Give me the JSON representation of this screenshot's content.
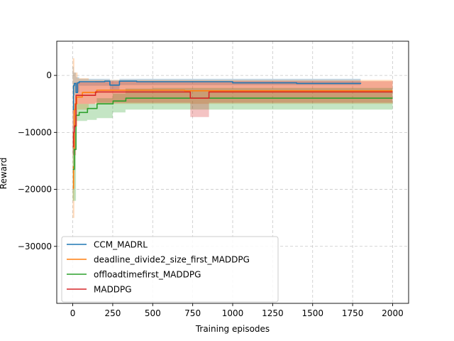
{
  "chart_data": {
    "type": "line",
    "title": "",
    "xlabel": "Training episodes",
    "ylabel": "Reward",
    "xlim": [
      -100,
      2100
    ],
    "ylim": [
      -40000,
      6000
    ],
    "xticks": [
      0,
      250,
      500,
      750,
      1000,
      1250,
      1500,
      1750,
      2000
    ],
    "xtick_labels": [
      "0",
      "250",
      "500",
      "750",
      "1000",
      "1250",
      "1500",
      "1750",
      "2000"
    ],
    "yticks": [
      -30000,
      -20000,
      -10000,
      0
    ],
    "ytick_labels": [
      "−30000",
      "−20000",
      "−10000",
      "0"
    ],
    "grid": true,
    "legend_position": "lower-left",
    "series": [
      {
        "name": "CCM_MADRL",
        "color": "#1f77b4",
        "points": [
          [
            0,
            -6000
          ],
          [
            5,
            -1800
          ],
          [
            10,
            -1400
          ],
          [
            20,
            -3000
          ],
          [
            30,
            -1300
          ],
          [
            40,
            -1100
          ],
          [
            100,
            -1100
          ],
          [
            200,
            -1000
          ],
          [
            230,
            -1000
          ],
          [
            232,
            -1700
          ],
          [
            290,
            -1700
          ],
          [
            292,
            -1000
          ],
          [
            400,
            -1100
          ],
          [
            700,
            -1100
          ],
          [
            1000,
            -1300
          ],
          [
            1200,
            -1300
          ],
          [
            1400,
            -1400
          ],
          [
            1600,
            -1400
          ],
          [
            1800,
            -1300
          ]
        ],
        "band_upper": [
          [
            0,
            1500
          ],
          [
            5,
            500
          ],
          [
            20,
            -300
          ],
          [
            40,
            -600
          ],
          [
            230,
            -600
          ],
          [
            232,
            -800
          ],
          [
            290,
            -800
          ],
          [
            292,
            -600
          ],
          [
            1800,
            -700
          ]
        ],
        "band_lower": [
          [
            0,
            -14000
          ],
          [
            5,
            -3500
          ],
          [
            20,
            -3000
          ],
          [
            40,
            -1800
          ],
          [
            230,
            -1800
          ],
          [
            232,
            -2500
          ],
          [
            290,
            -2500
          ],
          [
            292,
            -1700
          ],
          [
            1800,
            -1900
          ]
        ]
      },
      {
        "name": "deadline_divide2_size_first_MADDPG",
        "color": "#ff7f0e",
        "points": [
          [
            0,
            -19800
          ],
          [
            5,
            -16000
          ],
          [
            10,
            -6000
          ],
          [
            15,
            -5000
          ],
          [
            25,
            -3800
          ],
          [
            60,
            -3000
          ],
          [
            150,
            -2600
          ],
          [
            300,
            -2600
          ],
          [
            700,
            -2700
          ],
          [
            1000,
            -2700
          ],
          [
            1500,
            -2700
          ],
          [
            2000,
            -2700
          ]
        ],
        "band_upper": [
          [
            0,
            3000
          ],
          [
            10,
            500
          ],
          [
            30,
            -500
          ],
          [
            100,
            -800
          ],
          [
            2000,
            -900
          ]
        ],
        "band_lower": [
          [
            0,
            -25000
          ],
          [
            10,
            -9000
          ],
          [
            30,
            -6000
          ],
          [
            100,
            -5000
          ],
          [
            2000,
            -5200
          ]
        ]
      },
      {
        "name": "offloadtimefirst_MADDPG",
        "color": "#2ca02c",
        "points": [
          [
            0,
            -16500
          ],
          [
            10,
            -13000
          ],
          [
            20,
            -7000
          ],
          [
            40,
            -6500
          ],
          [
            90,
            -6500
          ],
          [
            92,
            -5800
          ],
          [
            150,
            -5800
          ],
          [
            152,
            -5000
          ],
          [
            250,
            -5000
          ],
          [
            252,
            -4500
          ],
          [
            330,
            -4500
          ],
          [
            332,
            -4000
          ],
          [
            500,
            -4000
          ],
          [
            800,
            -4000
          ],
          [
            1000,
            -4000
          ],
          [
            1500,
            -4000
          ],
          [
            2000,
            -4000
          ]
        ],
        "band_upper": [
          [
            0,
            -10000
          ],
          [
            20,
            -5000
          ],
          [
            90,
            -5000
          ],
          [
            150,
            -4000
          ],
          [
            250,
            -3200
          ],
          [
            330,
            -2300
          ],
          [
            500,
            -2200
          ],
          [
            2000,
            -2200
          ]
        ],
        "band_lower": [
          [
            0,
            -22000
          ],
          [
            20,
            -8000
          ],
          [
            90,
            -7800
          ],
          [
            150,
            -7500
          ],
          [
            250,
            -6500
          ],
          [
            330,
            -6000
          ],
          [
            500,
            -6000
          ],
          [
            2000,
            -6000
          ]
        ]
      },
      {
        "name": "MADDPG",
        "color": "#d62728",
        "points": [
          [
            0,
            -12500
          ],
          [
            5,
            -10000
          ],
          [
            10,
            -9000
          ],
          [
            15,
            -8800
          ],
          [
            20,
            -3500
          ],
          [
            140,
            -3500
          ],
          [
            142,
            -2900
          ],
          [
            730,
            -2900
          ],
          [
            735,
            -4000
          ],
          [
            850,
            -4000
          ],
          [
            852,
            -2900
          ],
          [
            1000,
            -2900
          ],
          [
            1500,
            -2900
          ],
          [
            2000,
            -2900
          ]
        ],
        "band_upper": [
          [
            0,
            -6000
          ],
          [
            20,
            -1200
          ],
          [
            140,
            -1000
          ],
          [
            730,
            -1000
          ],
          [
            850,
            -1000
          ],
          [
            2000,
            -900
          ]
        ],
        "band_lower": [
          [
            0,
            -14000
          ],
          [
            20,
            -5000
          ],
          [
            140,
            -4800
          ],
          [
            730,
            -4800
          ],
          [
            735,
            -7300
          ],
          [
            850,
            -7300
          ],
          [
            852,
            -4800
          ],
          [
            2000,
            -5000
          ]
        ]
      }
    ]
  }
}
